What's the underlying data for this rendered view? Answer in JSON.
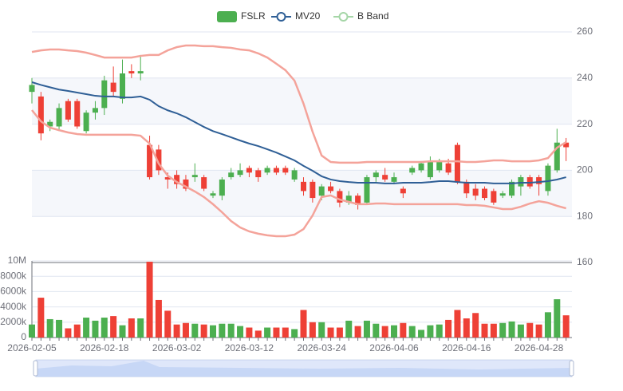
{
  "chart_data": {
    "type": "candlestick",
    "categories": [
      "2026-02-05",
      null,
      null,
      null,
      null,
      null,
      null,
      null,
      "2026-02-18",
      null,
      null,
      null,
      null,
      null,
      null,
      null,
      "2026-03-02",
      null,
      null,
      null,
      null,
      null,
      null,
      null,
      "2026-03-12",
      null,
      null,
      null,
      null,
      null,
      null,
      null,
      "2026-03-24",
      null,
      null,
      null,
      null,
      null,
      null,
      null,
      "2026-04-06",
      null,
      null,
      null,
      null,
      null,
      null,
      null,
      "2026-04-16",
      null,
      null,
      null,
      null,
      null,
      null,
      null,
      "2026-04-28",
      null,
      null,
      null
    ],
    "series": [
      {
        "name": "FSLR",
        "color": "#4caf50",
        "up_color": "#4caf50",
        "down_color": "#ee4036",
        "open": [
          234,
          232,
          219,
          219,
          230,
          230,
          217,
          225,
          227,
          238,
          231,
          243,
          242,
          211,
          209,
          197,
          198,
          196,
          197,
          197,
          189,
          189,
          197,
          198,
          201,
          200,
          199,
          201,
          201,
          196,
          195,
          195,
          189,
          193,
          191,
          186,
          189,
          186,
          197,
          198,
          195,
          192,
          199,
          200,
          197,
          200,
          203,
          211,
          195,
          192,
          192,
          191,
          189,
          189,
          193,
          197,
          197,
          191,
          200,
          212
        ],
        "close": [
          237,
          216,
          221,
          227,
          222,
          219,
          225,
          227,
          239,
          234,
          242,
          242,
          243,
          197,
          200,
          196,
          194,
          192,
          198,
          192,
          190,
          196,
          199,
          200,
          199,
          197,
          201,
          199,
          199,
          200,
          191,
          188,
          193,
          191,
          186,
          189,
          185,
          197,
          199,
          196,
          197,
          190,
          201,
          203,
          204,
          204,
          199,
          195,
          190,
          189,
          188,
          186,
          190,
          195,
          197,
          193,
          194,
          202,
          212,
          210
        ],
        "high": [
          240,
          234,
          222,
          229,
          231,
          231,
          226,
          230,
          241,
          245,
          248,
          246,
          250,
          215,
          211,
          199,
          200,
          198,
          203,
          198,
          191,
          197,
          201,
          203,
          202,
          201,
          202,
          202,
          202,
          201,
          197,
          196,
          194,
          195,
          192,
          191,
          190,
          198,
          200,
          201,
          199,
          193,
          202,
          204,
          206,
          205,
          205,
          212,
          196,
          194,
          193,
          192,
          191,
          196,
          198,
          198,
          198,
          203,
          218,
          214
        ],
        "low": [
          229,
          213,
          217,
          217,
          221,
          218,
          216,
          222,
          224,
          232,
          229,
          240,
          239,
          196,
          198,
          192,
          192,
          191,
          195,
          191,
          188,
          187,
          196,
          197,
          197,
          195,
          198,
          198,
          198,
          195,
          189,
          186,
          187,
          190,
          184,
          185,
          183,
          185,
          195,
          195,
          194,
          188,
          198,
          199,
          196,
          199,
          198,
          194,
          188,
          187,
          187,
          185,
          188,
          188,
          189,
          192,
          189,
          189,
          199,
          204
        ]
      },
      {
        "name": "MV20",
        "color": "#2f5f96",
        "values": [
          238.2,
          237,
          236,
          235,
          234.4,
          233.7,
          233,
          232.3,
          232,
          232,
          231.6,
          231.6,
          232,
          230.6,
          227.8,
          226,
          224.7,
          223,
          220.9,
          218.8,
          217,
          215.7,
          214.3,
          212.9,
          211.6,
          210.5,
          209.1,
          207.7,
          206,
          204.3,
          201.9,
          199.8,
          197.4,
          196,
          195.3,
          194.9,
          194.6,
          194.6,
          194.6,
          194.3,
          194.3,
          194.6,
          194.6,
          194.6,
          194.9,
          195.3,
          195.3,
          194.9,
          194.6,
          194.6,
          194.6,
          194.3,
          194.3,
          194.3,
          194.6,
          194.6,
          194.9,
          195.3,
          196,
          197
        ]
      },
      {
        "name": "B Band",
        "color": "#a5d6a7",
        "line_color": "#f4a39a",
        "upper": [
          251.3,
          252,
          252.4,
          252.4,
          252,
          251.7,
          251,
          250,
          248.9,
          248.9,
          248.9,
          248.9,
          249.6,
          250,
          250,
          252,
          253.4,
          254.1,
          254.1,
          253.8,
          253.8,
          253.4,
          253.1,
          252.4,
          252,
          250.7,
          248.9,
          246.2,
          243.4,
          238.9,
          228.9,
          216.7,
          206.4,
          203.6,
          203.3,
          203.3,
          203.3,
          203.6,
          203.6,
          203.6,
          203.6,
          203.6,
          203.6,
          203.6,
          203.9,
          203.9,
          203.9,
          203.9,
          203.6,
          203.6,
          203.9,
          204.3,
          204.3,
          203.9,
          203.9,
          203.9,
          204.3,
          205.3,
          209.8,
          212.2
        ],
        "lower": [
          226.1,
          221.2,
          218.5,
          217.4,
          216.4,
          215.7,
          215.4,
          215.4,
          215.4,
          215.4,
          215.4,
          215.4,
          215,
          211.6,
          202.9,
          197.7,
          194.9,
          192.9,
          190.8,
          188.4,
          185.3,
          181.8,
          178,
          175.2,
          173.5,
          172.5,
          171.8,
          171.4,
          171.4,
          172.1,
          174.5,
          180.4,
          188.4,
          189.1,
          187.3,
          186.3,
          185.3,
          185.3,
          185.6,
          185.6,
          185.3,
          185.3,
          185.3,
          185.3,
          185.3,
          185.3,
          185.3,
          185.3,
          184.9,
          184.9,
          184.6,
          183.9,
          183.2,
          183.2,
          184.2,
          185.6,
          186.6,
          185.9,
          184.6,
          183.5
        ]
      }
    ],
    "ylim": [
      160,
      260
    ],
    "yticks": [
      160,
      180,
      200,
      220,
      240,
      260
    ],
    "grid": true,
    "volume": {
      "values": [
        1700000,
        5200000,
        2400000,
        2300000,
        1200000,
        1700000,
        2600000,
        2200000,
        2600000,
        2800000,
        1600000,
        2500000,
        2500000,
        9900000,
        4900000,
        3500000,
        1700000,
        1900000,
        1800000,
        1700000,
        1600000,
        1800000,
        1800000,
        1500000,
        1300000,
        900000,
        1300000,
        1300000,
        1300000,
        1100000,
        3600000,
        2000000,
        2000000,
        1300000,
        1300000,
        2200000,
        1500000,
        2200000,
        1800000,
        1500000,
        1600000,
        1900000,
        1500000,
        1000000,
        1600000,
        1700000,
        2300000,
        3600000,
        2500000,
        3200000,
        1800000,
        1800000,
        1900000,
        2100000,
        1700000,
        1900000,
        1700000,
        3300000,
        5000000,
        2900000
      ],
      "ylim": [
        0,
        10000000
      ],
      "yticks": [
        0,
        {
          "value": 2000000,
          "label": "2000k"
        },
        {
          "value": 4000000,
          "label": "4000k"
        },
        {
          "value": 6000000,
          "label": "6000k"
        },
        {
          "value": 8000000,
          "label": "8000k"
        },
        {
          "value": 10000000,
          "label": "10M"
        }
      ]
    }
  }
}
